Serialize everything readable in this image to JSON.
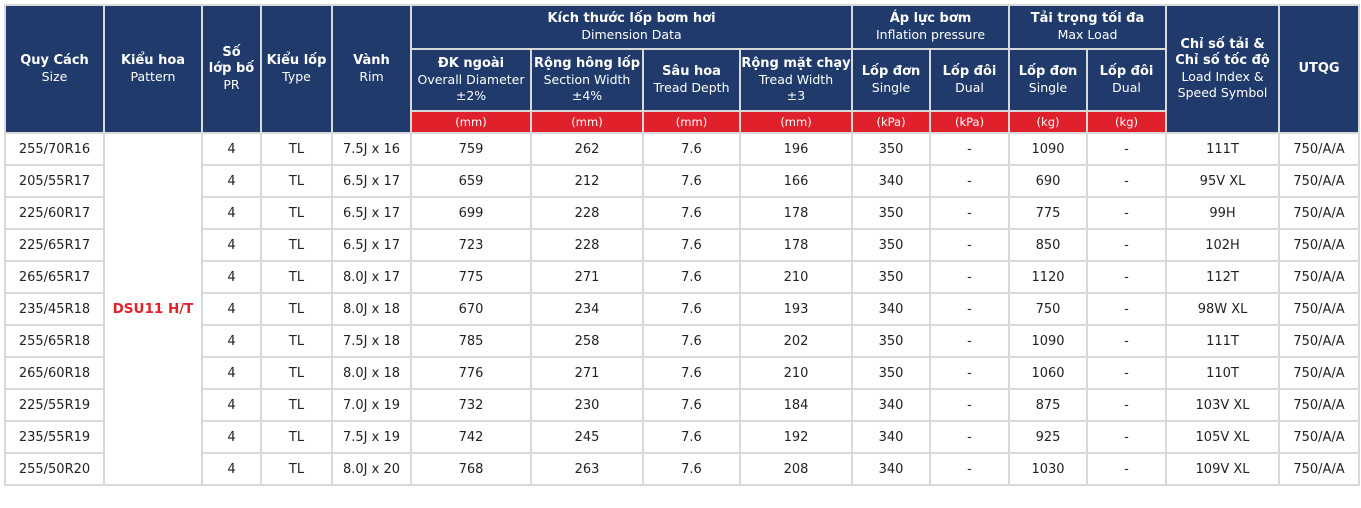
{
  "headers": {
    "size": {
      "vi": "Quy Cách",
      "en": "Size"
    },
    "pattern": {
      "vi": "Kiểu hoa",
      "en": "Pattern"
    },
    "pr": {
      "vi_1": "Số",
      "vi_2": "lớp bố",
      "en": "PR"
    },
    "type": {
      "vi": "Kiểu lốp",
      "en": "Type"
    },
    "rim": {
      "vi": "Vành",
      "en": "Rim"
    },
    "dimension": {
      "vi": "Kích thước lốp bơm hơi",
      "en": "Dimension Data"
    },
    "inflation": {
      "vi": "Áp lực bơm",
      "en": "Inflation pressure"
    },
    "max_load": {
      "vi": "Tải trọng tối đa",
      "en": "Max Load"
    },
    "load_index": {
      "vi_1": "Chỉ số tải &",
      "vi_2": "Chỉ số tốc độ",
      "en_1": "Load Index &",
      "en_2": "Speed Symbol"
    },
    "utqg": "UTQG",
    "overall_diameter": {
      "vi": "ĐK ngoài",
      "en": "Overall Diameter",
      "tol": "±2%"
    },
    "section_width": {
      "vi": "Rộng hông lốp",
      "en": "Section Width",
      "tol": "±4%"
    },
    "tread_depth": {
      "vi": "Sâu hoa",
      "en": "Tread Depth"
    },
    "tread_width": {
      "vi": "Rộng mặt chạy",
      "en": "Tread Width",
      "tol": "±3"
    },
    "inflation_single": {
      "vi": "Lốp đơn",
      "en": "Single"
    },
    "inflation_dual": {
      "vi": "Lốp đôi",
      "en": "Dual"
    },
    "load_single": {
      "vi": "Lốp đơn",
      "en": "Single"
    },
    "load_dual": {
      "vi": "Lốp đôi",
      "en": "Dual"
    }
  },
  "units": [
    "(mm)",
    "(mm)",
    "(mm)",
    "(mm)",
    "(kPa)",
    "(kPa)",
    "(kg)",
    "(kg)"
  ],
  "pattern_name": "DSU11 H/T",
  "rows": [
    {
      "size": "255/70R16",
      "pr": "4",
      "type": "TL",
      "rim": "7.5J x 16",
      "od": "759",
      "sw": "262",
      "td": "7.6",
      "tw": "196",
      "inf_single": "350",
      "inf_dual": "-",
      "load_single": "1090",
      "load_dual": "-",
      "li": "111T",
      "utqg": "750/A/A"
    },
    {
      "size": "205/55R17",
      "pr": "4",
      "type": "TL",
      "rim": "6.5J x 17",
      "od": "659",
      "sw": "212",
      "td": "7.6",
      "tw": "166",
      "inf_single": "340",
      "inf_dual": "-",
      "load_single": "690",
      "load_dual": "-",
      "li": "95V XL",
      "utqg": "750/A/A"
    },
    {
      "size": "225/60R17",
      "pr": "4",
      "type": "TL",
      "rim": "6.5J x 17",
      "od": "699",
      "sw": "228",
      "td": "7.6",
      "tw": "178",
      "inf_single": "350",
      "inf_dual": "-",
      "load_single": "775",
      "load_dual": "-",
      "li": "99H",
      "utqg": "750/A/A"
    },
    {
      "size": "225/65R17",
      "pr": "4",
      "type": "TL",
      "rim": "6.5J x 17",
      "od": "723",
      "sw": "228",
      "td": "7.6",
      "tw": "178",
      "inf_single": "350",
      "inf_dual": "-",
      "load_single": "850",
      "load_dual": "-",
      "li": "102H",
      "utqg": "750/A/A"
    },
    {
      "size": "265/65R17",
      "pr": "4",
      "type": "TL",
      "rim": "8.0J x 17",
      "od": "775",
      "sw": "271",
      "td": "7.6",
      "tw": "210",
      "inf_single": "350",
      "inf_dual": "-",
      "load_single": "1120",
      "load_dual": "-",
      "li": "112T",
      "utqg": "750/A/A"
    },
    {
      "size": "235/45R18",
      "pr": "4",
      "type": "TL",
      "rim": "8.0J x 18",
      "od": "670",
      "sw": "234",
      "td": "7.6",
      "tw": "193",
      "inf_single": "340",
      "inf_dual": "-",
      "load_single": "750",
      "load_dual": "-",
      "li": "98W XL",
      "utqg": "750/A/A"
    },
    {
      "size": "255/65R18",
      "pr": "4",
      "type": "TL",
      "rim": "7.5J x 18",
      "od": "785",
      "sw": "258",
      "td": "7.6",
      "tw": "202",
      "inf_single": "350",
      "inf_dual": "-",
      "load_single": "1090",
      "load_dual": "-",
      "li": "111T",
      "utqg": "750/A/A"
    },
    {
      "size": "265/60R18",
      "pr": "4",
      "type": "TL",
      "rim": "8.0J x 18",
      "od": "776",
      "sw": "271",
      "td": "7.6",
      "tw": "210",
      "inf_single": "350",
      "inf_dual": "-",
      "load_single": "1060",
      "load_dual": "-",
      "li": "110T",
      "utqg": "750/A/A"
    },
    {
      "size": "225/55R19",
      "pr": "4",
      "type": "TL",
      "rim": "7.0J x 19",
      "od": "732",
      "sw": "230",
      "td": "7.6",
      "tw": "184",
      "inf_single": "340",
      "inf_dual": "-",
      "load_single": "875",
      "load_dual": "-",
      "li": "103V XL",
      "utqg": "750/A/A"
    },
    {
      "size": "235/55R19",
      "pr": "4",
      "type": "TL",
      "rim": "7.5J x 19",
      "od": "742",
      "sw": "245",
      "td": "7.6",
      "tw": "192",
      "inf_single": "340",
      "inf_dual": "-",
      "load_single": "925",
      "load_dual": "-",
      "li": "105V XL",
      "utqg": "750/A/A"
    },
    {
      "size": "255/50R20",
      "pr": "4",
      "type": "TL",
      "rim": "8.0J x 20",
      "od": "768",
      "sw": "263",
      "td": "7.6",
      "tw": "208",
      "inf_single": "340",
      "inf_dual": "-",
      "load_single": "1030",
      "load_dual": "-",
      "li": "109V XL",
      "utqg": "750/A/A"
    }
  ]
}
